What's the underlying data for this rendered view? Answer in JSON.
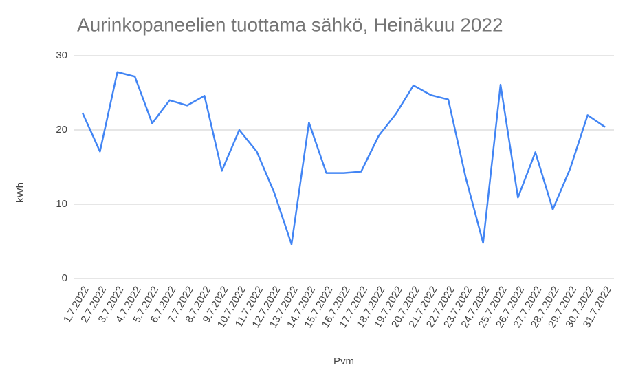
{
  "chart_data": {
    "type": "line",
    "title": "Aurinkopaneelien tuottama sähkö, Heinäkuu 2022",
    "x_label": "Pvm",
    "y_label": "kWh",
    "categories": [
      "1.7.2022",
      "2.7.2022",
      "3.7.2022",
      "4.7.2022",
      "5.7.2022",
      "6.7.2022",
      "7.7.2022",
      "8.7.2022",
      "9.7.2022",
      "10.7.2022",
      "11.7.2022",
      "12.7.2022",
      "13.7.2022",
      "14.7.2022",
      "15.7.2022",
      "16.7.2022",
      "17.7.2022",
      "18.7.2022",
      "19.7.2022",
      "20.7.2022",
      "21.7.2022",
      "22.7.2022",
      "23.7.2022",
      "24.7.2022",
      "25.7.2022",
      "26.7.2022",
      "27.7.2022",
      "28.7.2022",
      "29.7.2022",
      "30.7.2022",
      "31.7.2022"
    ],
    "values": [
      22.3,
      17.1,
      27.8,
      27.2,
      20.9,
      24.0,
      23.3,
      24.6,
      14.5,
      20.0,
      17.1,
      11.6,
      4.6,
      21.0,
      14.2,
      14.2,
      14.4,
      19.2,
      22.2,
      26.0,
      24.7,
      24.1,
      13.6,
      4.8,
      26.1,
      10.9,
      17.0,
      9.3,
      14.8,
      22.0,
      20.4
    ],
    "color": "#4285f4",
    "ylim": [
      0,
      30
    ],
    "yticks": [
      0,
      10,
      20,
      30
    ],
    "grid": true
  }
}
